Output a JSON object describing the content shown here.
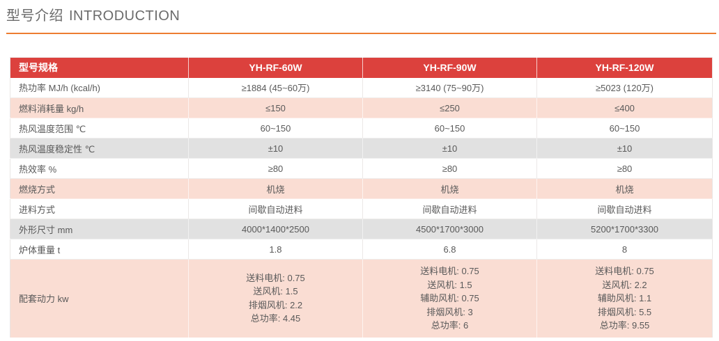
{
  "page": {
    "title_zh": "型号介绍",
    "title_en": "INTRODUCTION"
  },
  "colors": {
    "header_bg": "#DC413D",
    "header_text": "#FFFFFF",
    "row_pink": "#FADDD3",
    "row_gray": "#E1E1E1",
    "row_white": "#FFFFFF",
    "accent_orange": "#ED7D31",
    "body_text": "#595959",
    "title_text": "#6B6B6B"
  },
  "table": {
    "header": [
      "型号规格",
      "YH-RF-60W",
      "YH-RF-90W",
      "YH-RF-120W"
    ],
    "rows": [
      {
        "label": "热功率 MJ/h (kcal/h)",
        "bg": "white",
        "values": [
          "≥1884 (45~60万)",
          "≥3140 (75~90万)",
          "≥5023 (120万)"
        ]
      },
      {
        "label": "燃料消耗量 kg/h",
        "bg": "pink",
        "values": [
          "≤150",
          "≤250",
          "≤400"
        ]
      },
      {
        "label": "热风温度范围 ℃",
        "bg": "white",
        "values": [
          "60~150",
          "60~150",
          "60~150"
        ]
      },
      {
        "label": "热风温度稳定性 ℃",
        "bg": "gray",
        "values": [
          "±10",
          "±10",
          "±10"
        ]
      },
      {
        "label": "热效率 %",
        "bg": "white",
        "values": [
          "≥80",
          "≥80",
          "≥80"
        ]
      },
      {
        "label": "燃烧方式",
        "bg": "pink",
        "values": [
          "机烧",
          "机烧",
          "机烧"
        ]
      },
      {
        "label": "进料方式",
        "bg": "white",
        "values": [
          "间歇自动进料",
          "间歇自动进料",
          "间歇自动进料"
        ]
      },
      {
        "label": "外形尺寸 mm",
        "bg": "gray",
        "values": [
          "4000*1400*2500",
          "4500*1700*3000",
          "5200*1700*3300"
        ]
      },
      {
        "label": "炉体重量 t",
        "bg": "white",
        "values": [
          "1.8",
          "6.8",
          "8"
        ]
      },
      {
        "label": "配套动力 kw",
        "bg": "pink",
        "values": [
          [
            "送料电机: 0.75",
            "送风机: 1.5",
            "排烟风机: 2.2",
            "总功率: 4.45"
          ],
          [
            "送料电机: 0.75",
            "送风机: 1.5",
            "辅助风机: 0.75",
            "排烟风机: 3",
            "总功率: 6"
          ],
          [
            "送料电机: 0.75",
            "送风机: 2.2",
            "辅助风机: 1.1",
            "排烟风机: 5.5",
            "总功率: 9.55"
          ]
        ]
      }
    ]
  }
}
